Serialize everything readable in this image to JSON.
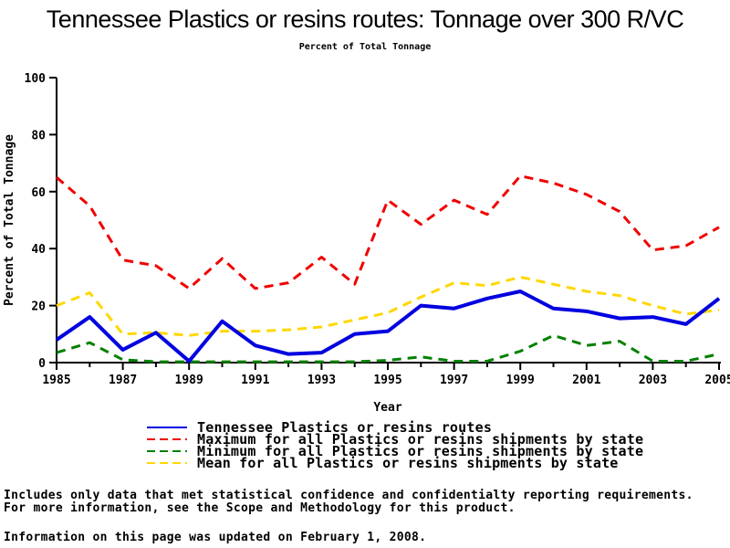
{
  "title": "Tennessee Plastics or resins routes: Tonnage over 300 R/VC",
  "subtitle": "Percent of Total Tonnage",
  "chart_data": {
    "type": "line",
    "x": [
      1985,
      1986,
      1987,
      1988,
      1989,
      1990,
      1991,
      1992,
      1993,
      1994,
      1995,
      1996,
      1997,
      1998,
      1999,
      2000,
      2001,
      2002,
      2003,
      2004,
      2005
    ],
    "series": [
      {
        "name": "Tennessee Plastics or resins routes",
        "color": "#0000e0",
        "style": "solid",
        "values": [
          8,
          16,
          4.5,
          10.5,
          0.5,
          14.5,
          6,
          3,
          3.5,
          10,
          11,
          20,
          19,
          22.5,
          25,
          19,
          18,
          15.5,
          16,
          13.5,
          22.5
        ]
      },
      {
        "name": "Maximum for all Plastics or resins shipments by state",
        "color": "#f00000",
        "style": "dashed",
        "values": [
          65,
          55,
          36,
          34,
          26,
          36.5,
          26,
          28,
          37,
          27.5,
          57,
          48.5,
          57,
          52,
          65.5,
          63,
          59,
          53,
          39.5,
          41,
          47.5
        ]
      },
      {
        "name": "Minimum for all Plastics or resins shipments by state",
        "color": "#008000",
        "style": "dashed",
        "values": [
          3.5,
          7,
          1,
          0.3,
          0.3,
          0.3,
          0.3,
          0.3,
          0.3,
          0.3,
          0.8,
          2,
          0.5,
          0.5,
          4,
          9.5,
          6,
          7.5,
          0.5,
          0.5,
          3
        ]
      },
      {
        "name": "Mean for all Plastics or resins shipments by state",
        "color": "#ffd700",
        "style": "dashed",
        "values": [
          20,
          24.5,
          10,
          10.5,
          9.5,
          11,
          11,
          11.5,
          12.5,
          15,
          17.5,
          23,
          28,
          27,
          30,
          27.5,
          25,
          23.5,
          20,
          17,
          18.5
        ]
      }
    ],
    "xlabel": "Year",
    "ylabel": "Percent of Total Tonnage",
    "ylim": [
      0,
      100
    ],
    "yticks": [
      0,
      20,
      40,
      60,
      80,
      100
    ],
    "xticks": [
      1985,
      1987,
      1989,
      1991,
      1993,
      1995,
      1997,
      1999,
      2001,
      2003,
      2005
    ],
    "grid": "off",
    "legend_position": "bottom"
  },
  "footer": {
    "line1": "Includes only data that met statistical confidence and confidentialty reporting requirements.",
    "line2": "For more information, see the Scope and Methodology for this product.",
    "updated": "Information on this page was updated on February 1, 2008."
  }
}
